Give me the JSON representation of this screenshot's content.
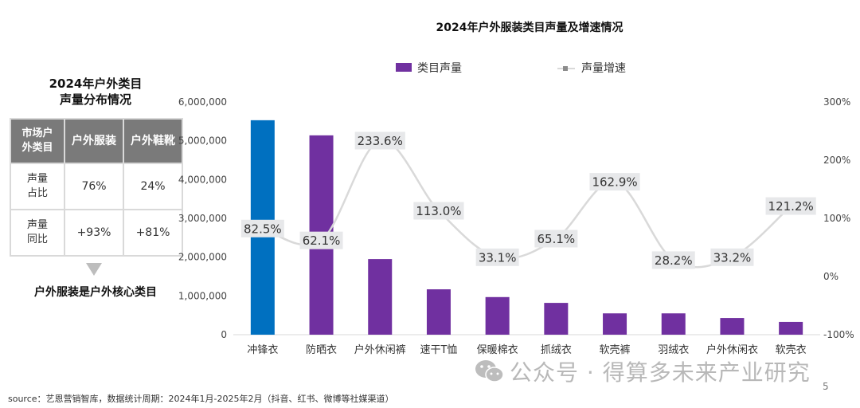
{
  "left_panel": {
    "title_line1": "2024年户外类目",
    "title_line2": "声量分布情况",
    "table": {
      "headers": [
        "市场户外类目",
        "户外服装",
        "户外鞋靴"
      ],
      "header_lines": [
        "市场户",
        "外类目"
      ],
      "rows": [
        {
          "label_line1": "声量",
          "label_line2": "占比",
          "values": [
            "76%",
            "24%"
          ]
        },
        {
          "label_line1": "声量",
          "label_line2": "同比",
          "values": [
            "+93%",
            "+81%"
          ]
        }
      ]
    },
    "conclusion": "户外服装是户外核心类目"
  },
  "chart_data": {
    "type": "bar",
    "title": "2024年户外服装类目声量及增速情况",
    "categories": [
      "冲锋衣",
      "防晒衣",
      "户外休闲裤",
      "速干T恤",
      "保暖棉衣",
      "抓绒衣",
      "软壳裤",
      "羽绒衣",
      "户外休闲衣",
      "软壳衣"
    ],
    "series": [
      {
        "name": "类目声量",
        "type": "bar",
        "axis": "left",
        "values": [
          5530000,
          5140000,
          1950000,
          1170000,
          970000,
          820000,
          550000,
          550000,
          430000,
          330000
        ]
      },
      {
        "name": "声量增速",
        "type": "line",
        "axis": "right",
        "values": [
          82.5,
          62.1,
          233.6,
          113.0,
          33.1,
          65.1,
          162.9,
          28.2,
          33.2,
          121.2
        ],
        "labels": [
          "82.5%",
          "62.1%",
          "233.6%",
          "113.0%",
          "33.1%",
          "65.1%",
          "162.9%",
          "28.2%",
          "33.2%",
          "121.2%"
        ]
      }
    ],
    "highlight_index": 0,
    "colors": {
      "bar": "#7030a0",
      "highlight": "#0070c0",
      "line": "#d9d9d9",
      "label_bg": "#e7e8ea"
    },
    "ylim": [
      0,
      6000000
    ],
    "yticks": [
      "0",
      "1,000,000",
      "2,000,000",
      "3,000,000",
      "4,000,000",
      "5,000,000",
      "6,000,000"
    ],
    "y2lim": [
      -100,
      300
    ],
    "y2ticks": [
      "-100%",
      "0%",
      "100%",
      "200%",
      "300%"
    ],
    "legend": {
      "position": "top",
      "items": [
        "类目声量",
        "声量增速"
      ]
    },
    "xlabel": "",
    "ylabel": "",
    "grid": false
  },
  "footer": {
    "source": "source：艺恩营销智库，数据统计周期：2024年1月-2025年2月（抖音、红书、微博等社媒渠道）",
    "watermark": "公众号 · 得算多未来产业研究",
    "page_number": "5"
  }
}
